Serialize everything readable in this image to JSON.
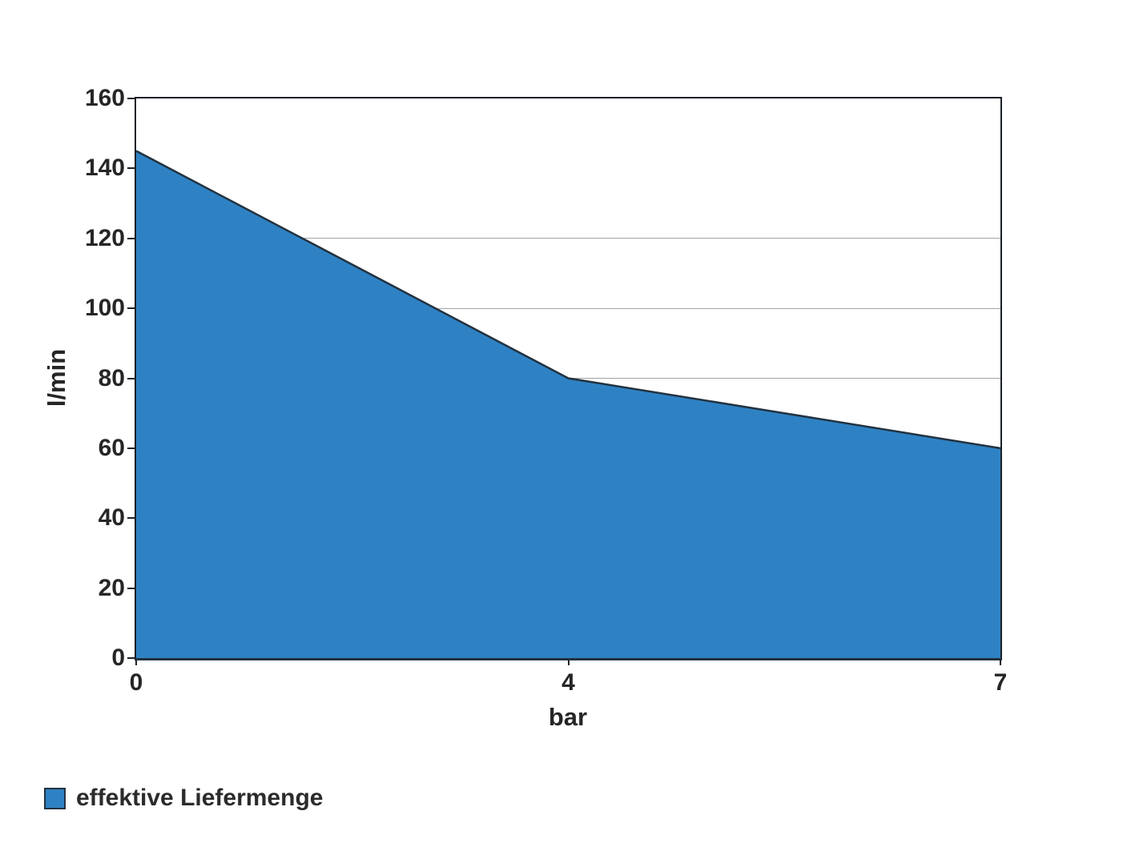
{
  "chart_data": {
    "type": "area",
    "title": "",
    "xlabel": "bar",
    "ylabel": "l/min",
    "x": [
      0,
      4,
      7
    ],
    "x_tick_labels": [
      "0",
      "4",
      "7"
    ],
    "series": [
      {
        "name": "effektive Liefermenge",
        "values": [
          145,
          80,
          60
        ]
      }
    ],
    "ylim": [
      0,
      160
    ],
    "ytick_step": 20,
    "ytick_labels": [
      "0",
      "20",
      "40",
      "60",
      "80",
      "100",
      "120",
      "140",
      "160"
    ],
    "gridline_values": [
      20,
      40,
      60,
      80,
      100,
      120
    ],
    "x_axis_type": "category-even-spacing",
    "grid": "horizontal-only",
    "legend_position": "bottom-left",
    "colors": {
      "area_fill": "#2e82c4",
      "area_outline": "#223240",
      "axis_frame": "#1b2026",
      "gridline": "#a3a3a3",
      "text": "#262626"
    }
  }
}
